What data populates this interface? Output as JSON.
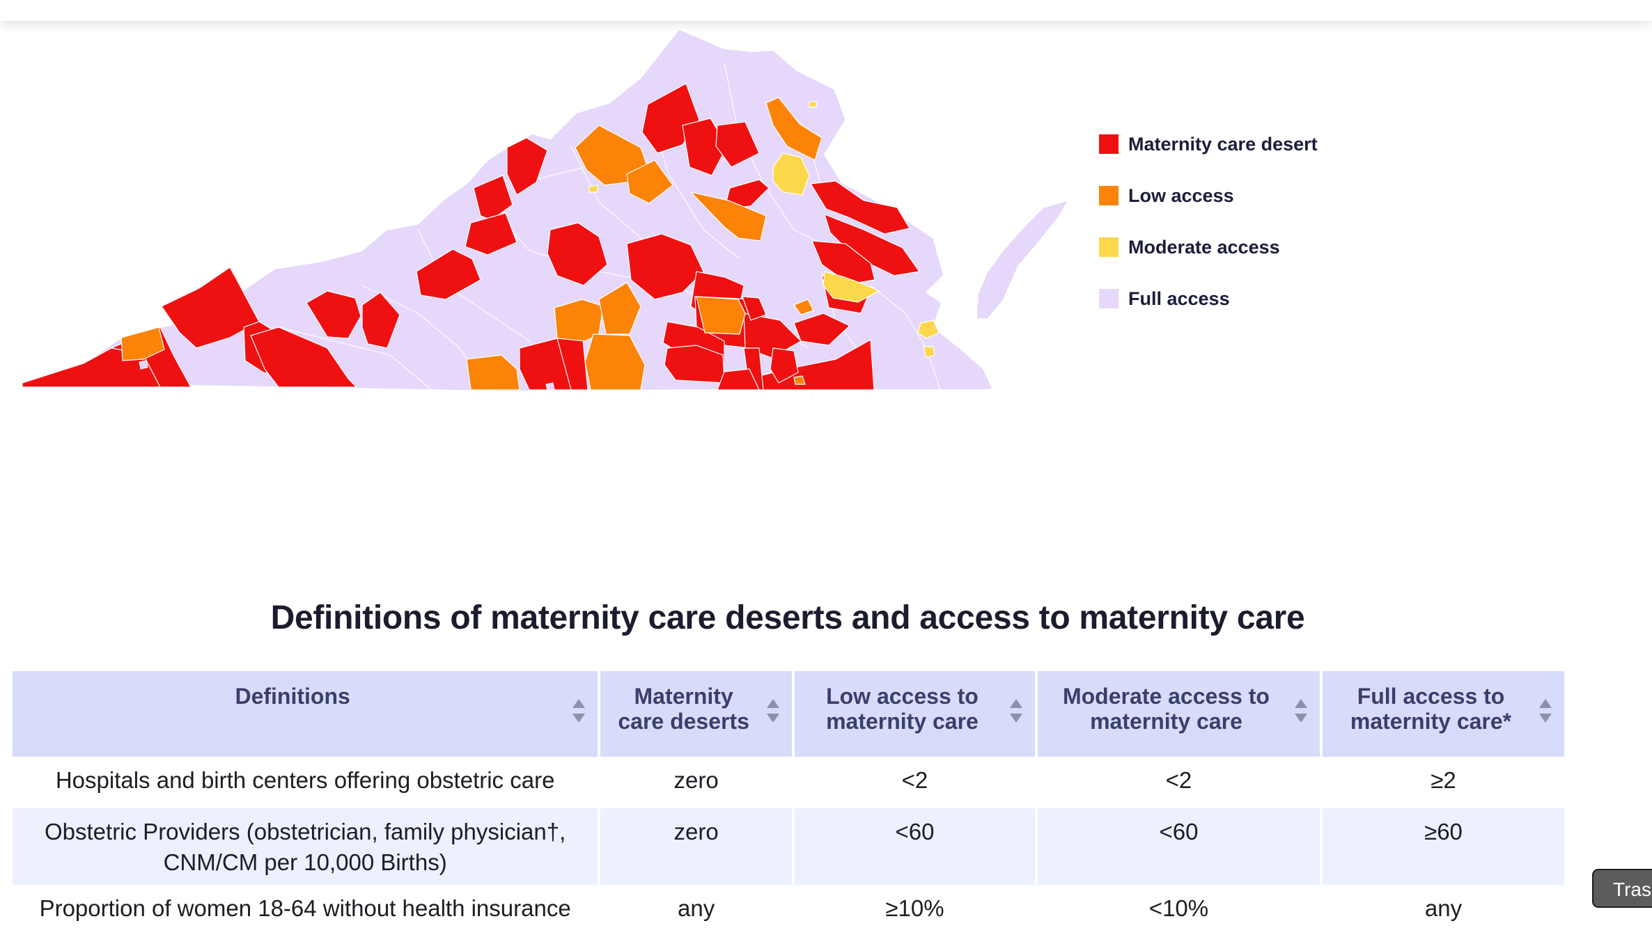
{
  "legend": {
    "items": [
      {
        "label": "Maternity care desert",
        "color": "#ef1111"
      },
      {
        "label": "Low access",
        "color": "#fb8408"
      },
      {
        "label": "Moderate access",
        "color": "#fcd84a"
      },
      {
        "label": "Full access",
        "color": "#e5d8fb"
      }
    ]
  },
  "section": {
    "title": "Definitions of maternity care deserts and access to maternity care"
  },
  "table": {
    "headers": [
      {
        "label": "Definitions"
      },
      {
        "label": "Maternity care deserts"
      },
      {
        "label": "Low access to maternity care"
      },
      {
        "label": "Moderate access to maternity care"
      },
      {
        "label": "Full access to maternity care*"
      }
    ],
    "rows": [
      {
        "cells": [
          "Hospitals and birth centers offering obstetric care",
          "zero",
          "<2",
          "<2",
          "≥2"
        ]
      },
      {
        "cells": [
          "Obstetric Providers (obstetrician, family physician†, CNM/CM per 10,000 Births)",
          "zero",
          "<60",
          "<60",
          "≥60"
        ]
      },
      {
        "cells": [
          "Proportion of women 18-64 without health insurance",
          "any",
          "≥10%",
          "<10%",
          "any"
        ]
      }
    ]
  },
  "tooltip": {
    "text": "Tras"
  }
}
